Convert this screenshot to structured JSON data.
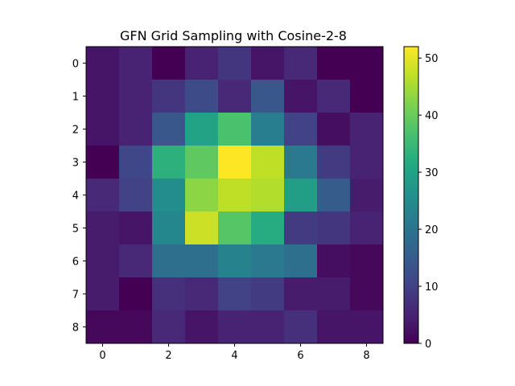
{
  "chart_data": {
    "type": "heatmap",
    "title": "GFN Grid Sampling with Cosine-2-8",
    "colormap": "viridis",
    "x_ticks": [
      "0",
      "2",
      "4",
      "6",
      "8"
    ],
    "y_ticks": [
      "0",
      "1",
      "2",
      "3",
      "4",
      "5",
      "6",
      "7",
      "8"
    ],
    "colorbar_ticks": [
      "0",
      "10",
      "20",
      "30",
      "40",
      "50"
    ],
    "vmin": 0,
    "vmax": 52,
    "values": [
      [
        3,
        5,
        0,
        5,
        8,
        3,
        6,
        0,
        0
      ],
      [
        3,
        5,
        8,
        12,
        6,
        14,
        3,
        6,
        0
      ],
      [
        3,
        5,
        14,
        30,
        37,
        22,
        10,
        2,
        5
      ],
      [
        0,
        11,
        33,
        39,
        52,
        47,
        21,
        9,
        5
      ],
      [
        6,
        10,
        25,
        43,
        47,
        46,
        29,
        15,
        4
      ],
      [
        4,
        3,
        24,
        48,
        38,
        32,
        9,
        8,
        5
      ],
      [
        4,
        6,
        19,
        19,
        23,
        21,
        19,
        2,
        1
      ],
      [
        4,
        0,
        7,
        6,
        10,
        9,
        4,
        4,
        1
      ],
      [
        1,
        1,
        6,
        3,
        5,
        5,
        7,
        3,
        3
      ]
    ]
  }
}
